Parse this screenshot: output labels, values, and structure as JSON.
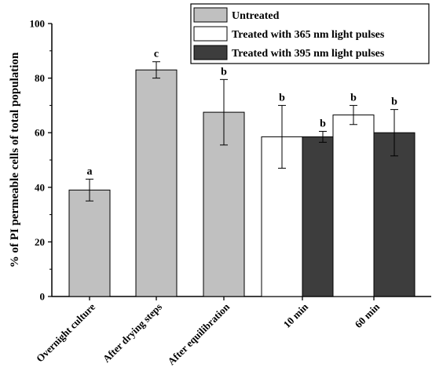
{
  "chart_data": {
    "type": "bar",
    "ylabel": "% of PI permeable cells of total population",
    "xlabel": "",
    "ylim": [
      0,
      100
    ],
    "yticks": [
      0,
      20,
      40,
      60,
      80,
      100
    ],
    "grid": false,
    "legend_position": "top-right",
    "categories": [
      "Overnight culture",
      "After drying steps",
      "After equilibration",
      "10 min",
      "60 min"
    ],
    "series": [
      {
        "name": "Untreated",
        "color": "#c0c0c0",
        "values": [
          39,
          83,
          67.5,
          null,
          null
        ],
        "errors": [
          4,
          3,
          12,
          null,
          null
        ],
        "letters": [
          "a",
          "c",
          "b",
          null,
          null
        ]
      },
      {
        "name": "Treated with 365 nm light pulses",
        "color": "#ffffff",
        "values": [
          null,
          null,
          null,
          58.5,
          66.5
        ],
        "errors": [
          null,
          null,
          null,
          11.5,
          3.5
        ],
        "letters": [
          null,
          null,
          null,
          "b",
          "b"
        ]
      },
      {
        "name": "Treated with 395 nm light pulses",
        "color": "#3d3d3d",
        "values": [
          null,
          null,
          null,
          58.5,
          60
        ],
        "errors": [
          null,
          null,
          null,
          2,
          8.5
        ],
        "letters": [
          null,
          null,
          null,
          "b",
          "b"
        ]
      }
    ]
  }
}
